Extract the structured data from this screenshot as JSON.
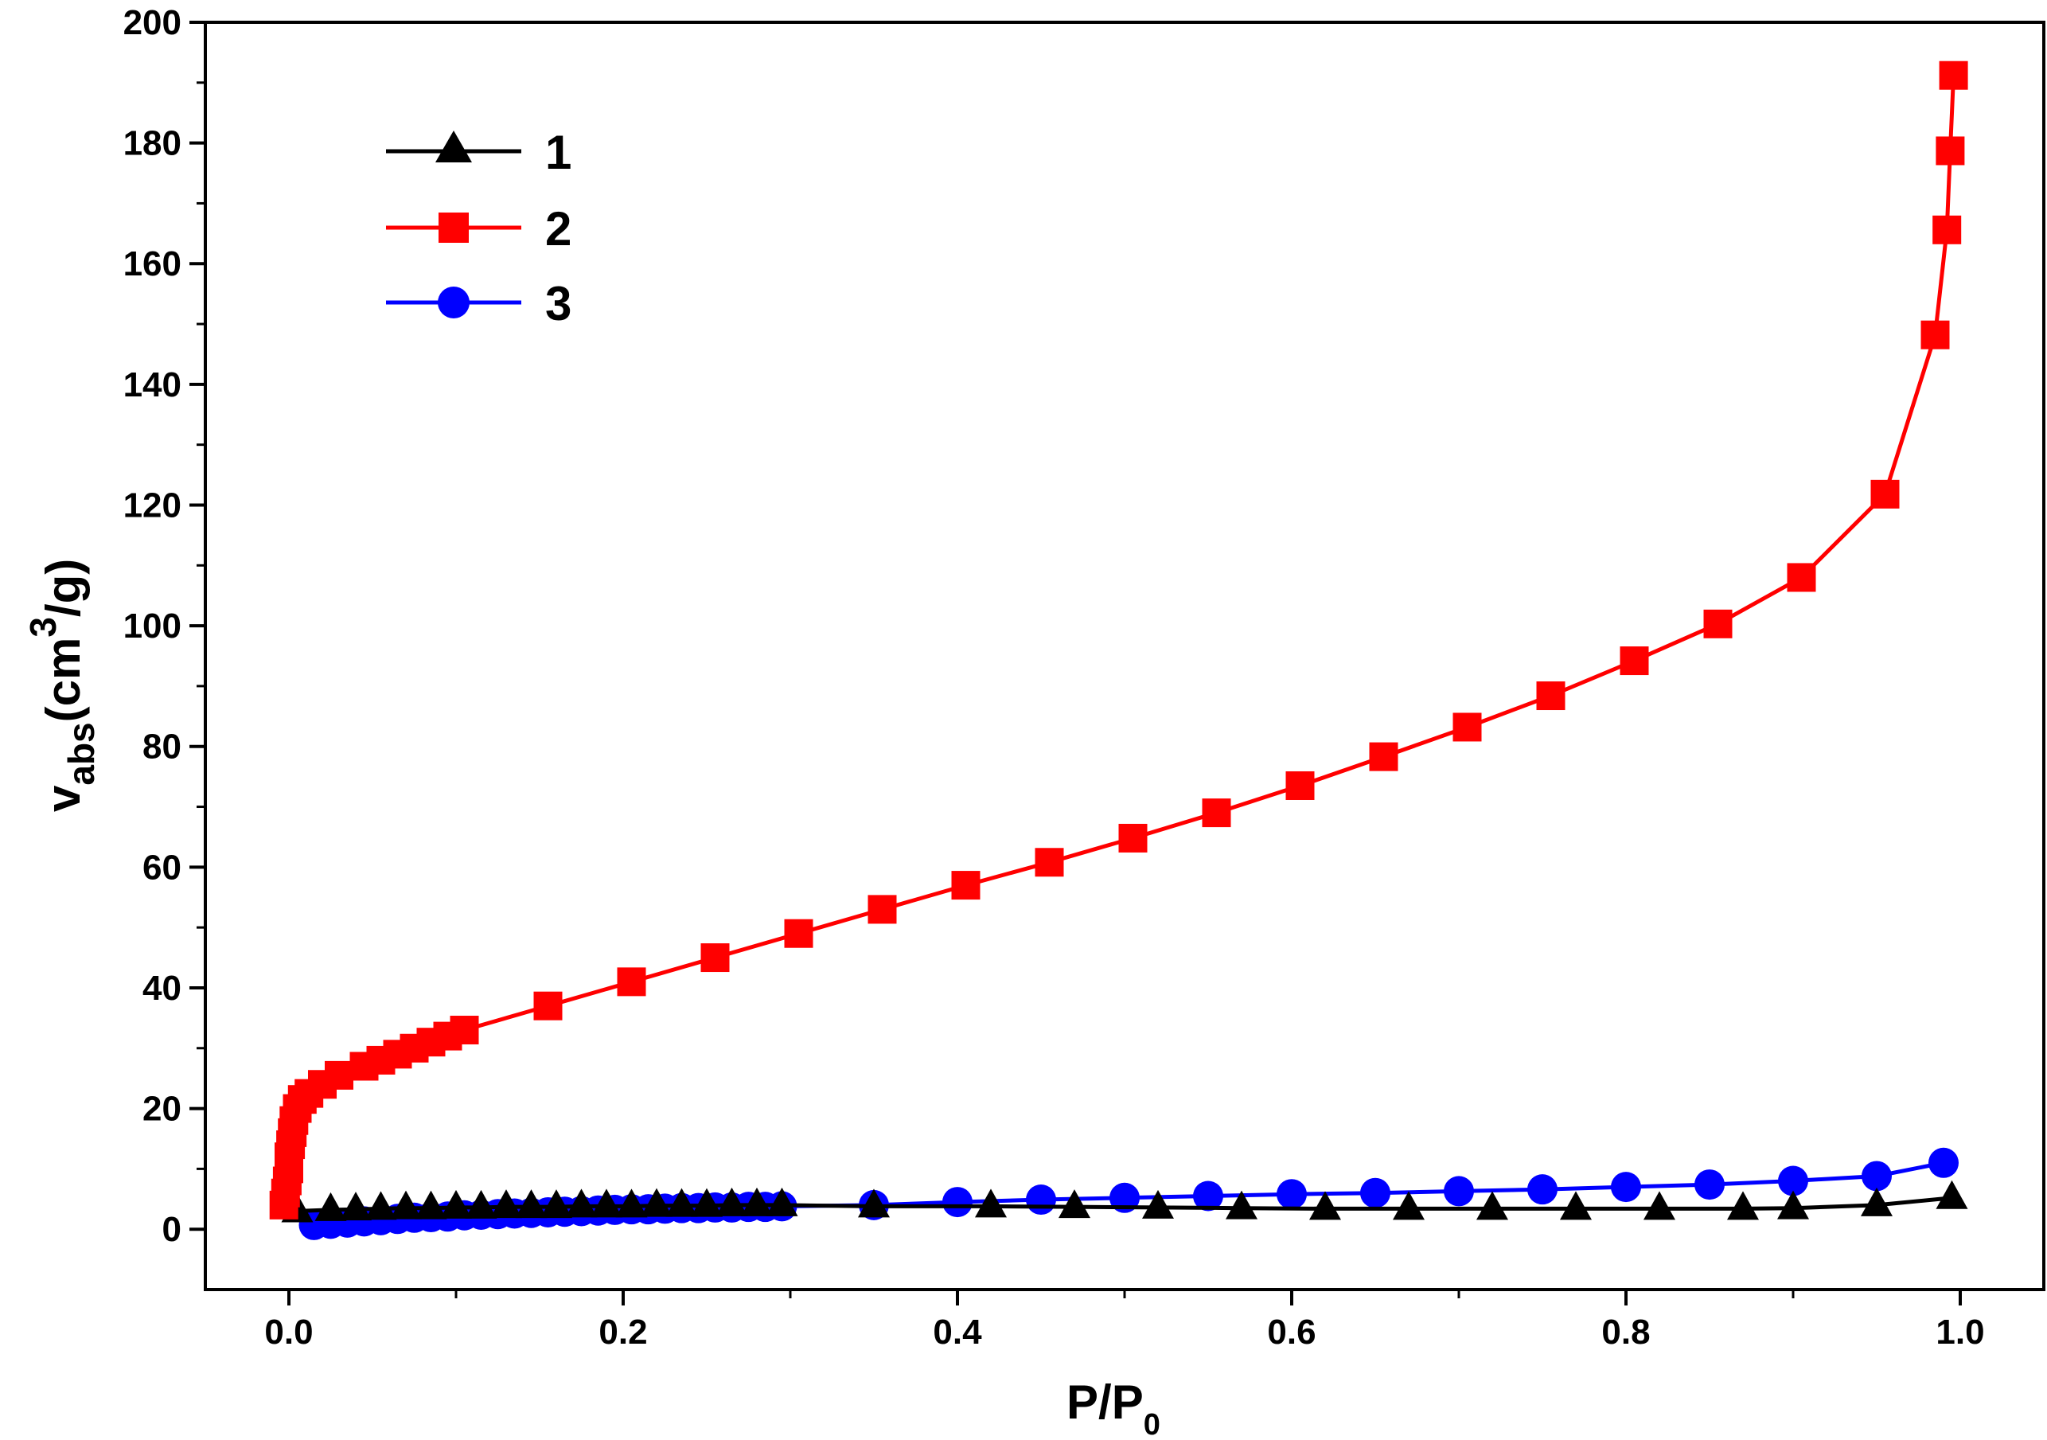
{
  "chart_data": {
    "type": "line",
    "title": "",
    "xlabel": "P/P",
    "xlabel_subscript": "0",
    "ylabel_main": "v",
    "ylabel_subscript": "abs",
    "ylabel_unit_open": "(cm",
    "ylabel_superscript": "3",
    "ylabel_unit_close": "/g)",
    "xlim": [
      -0.05,
      1.05
    ],
    "ylim": [
      -10,
      200
    ],
    "xticks": [
      0.0,
      0.2,
      0.4,
      0.6,
      0.8,
      1.0
    ],
    "xtick_labels": [
      "0.0",
      "0.2",
      "0.4",
      "0.6",
      "0.8",
      "1.0"
    ],
    "yticks": [
      0,
      20,
      40,
      60,
      80,
      100,
      120,
      140,
      160,
      180,
      200
    ],
    "ytick_labels": [
      "0",
      "20",
      "40",
      "60",
      "80",
      "100",
      "120",
      "140",
      "160",
      "180",
      "200"
    ],
    "legend_position": "top-left",
    "series": [
      {
        "name": "1",
        "color": "#000000",
        "marker": "triangle",
        "x": [
          0.005,
          0.025,
          0.04,
          0.055,
          0.07,
          0.085,
          0.1,
          0.115,
          0.13,
          0.145,
          0.16,
          0.175,
          0.19,
          0.205,
          0.22,
          0.235,
          0.25,
          0.265,
          0.28,
          0.295,
          0.35,
          0.42,
          0.47,
          0.52,
          0.57,
          0.62,
          0.67,
          0.72,
          0.77,
          0.82,
          0.87,
          0.9,
          0.95,
          0.995
        ],
        "y": [
          3.0,
          3.2,
          3.3,
          3.4,
          3.5,
          3.5,
          3.6,
          3.6,
          3.7,
          3.7,
          3.7,
          3.8,
          3.8,
          3.8,
          3.9,
          3.9,
          3.9,
          4.0,
          4.0,
          4.0,
          3.8,
          3.8,
          3.7,
          3.6,
          3.5,
          3.4,
          3.4,
          3.4,
          3.4,
          3.4,
          3.4,
          3.5,
          4.0,
          5.2
        ]
      },
      {
        "name": "2",
        "color": "#ff0000",
        "marker": "square",
        "x": [
          -0.003,
          -0.002,
          -0.001,
          0.0,
          0.0,
          0.001,
          0.002,
          0.003,
          0.005,
          0.008,
          0.012,
          0.02,
          0.03,
          0.045,
          0.055,
          0.065,
          0.075,
          0.085,
          0.095,
          0.105,
          0.155,
          0.205,
          0.255,
          0.305,
          0.355,
          0.405,
          0.455,
          0.505,
          0.555,
          0.605,
          0.655,
          0.705,
          0.755,
          0.805,
          0.855,
          0.905,
          0.955,
          0.985,
          0.992,
          0.994,
          0.996
        ],
        "y": [
          4.0,
          6.0,
          8.0,
          10.0,
          12.0,
          14.0,
          16.0,
          18.0,
          20.0,
          21.5,
          22.5,
          24.0,
          25.5,
          27.0,
          28.0,
          29.0,
          30.0,
          31.0,
          32.0,
          33.0,
          37.0,
          41.0,
          45.0,
          49.0,
          53.0,
          57.0,
          60.8,
          64.8,
          69.0,
          73.5,
          78.3,
          83.2,
          88.4,
          94.2,
          100.3,
          108.0,
          121.8,
          148.2,
          165.6,
          178.7,
          191.2
        ]
      },
      {
        "name": "3",
        "color": "#0000ff",
        "marker": "circle",
        "x": [
          0.015,
          0.025,
          0.035,
          0.045,
          0.055,
          0.065,
          0.075,
          0.085,
          0.095,
          0.105,
          0.115,
          0.125,
          0.135,
          0.145,
          0.155,
          0.165,
          0.175,
          0.185,
          0.195,
          0.205,
          0.215,
          0.225,
          0.235,
          0.245,
          0.255,
          0.265,
          0.275,
          0.285,
          0.295,
          0.35,
          0.4,
          0.45,
          0.5,
          0.55,
          0.6,
          0.65,
          0.7,
          0.75,
          0.8,
          0.85,
          0.9,
          0.95,
          0.99
        ],
        "y": [
          0.7,
          0.9,
          1.1,
          1.3,
          1.5,
          1.7,
          1.9,
          2.0,
          2.1,
          2.3,
          2.4,
          2.5,
          2.6,
          2.7,
          2.8,
          2.9,
          3.0,
          3.1,
          3.2,
          3.3,
          3.3,
          3.4,
          3.5,
          3.5,
          3.6,
          3.6,
          3.7,
          3.7,
          3.8,
          4.0,
          4.5,
          4.9,
          5.2,
          5.5,
          5.8,
          6.0,
          6.3,
          6.6,
          7.0,
          7.4,
          8.0,
          8.8,
          11.0
        ]
      }
    ]
  }
}
